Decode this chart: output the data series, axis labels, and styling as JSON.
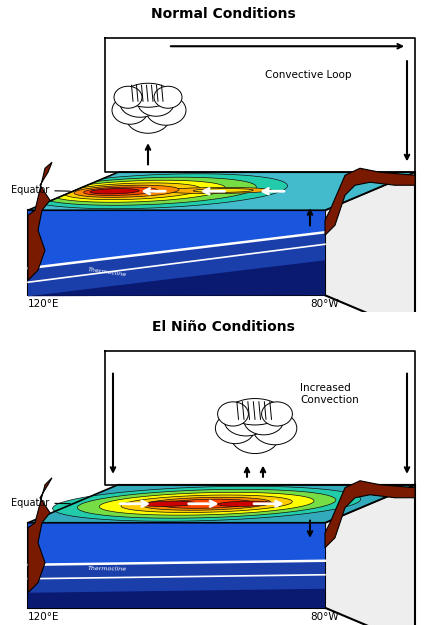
{
  "title1": "Normal Conditions",
  "title2": "El Niño Conditions",
  "label_120E": "120°E",
  "label_80W": "80°W",
  "label_equator": "Equator",
  "label_convective_loop": "Convective Loop",
  "label_increased_convection": "Increased\nConvection",
  "bg_color": "#ffffff",
  "land_color": "#7a1a00",
  "box_bg": "#ffffff",
  "deep_ocean1": "#0d1f7a",
  "deep_ocean2": "#1535b0",
  "deep_ocean3": "#2255cc",
  "surf_ocean": "#3377dd",
  "temp_c1": "#44ccbb",
  "temp_c2": "#22bb99",
  "temp_c3": "#66dd55",
  "temp_c4": "#aaee33",
  "temp_c5": "#ffff00",
  "temp_c6": "#ffcc00",
  "temp_c7": "#ff9900",
  "temp_c8": "#ff5500",
  "temp_c9": "#ff2200",
  "temp_c10": "#cc0000",
  "ocean_top_bg_normal": "#44bbcc",
  "ocean_top_bg_elnino": "#33aabb",
  "right_face_color": "#eeeeee",
  "thermocline_color": "#ffffff"
}
